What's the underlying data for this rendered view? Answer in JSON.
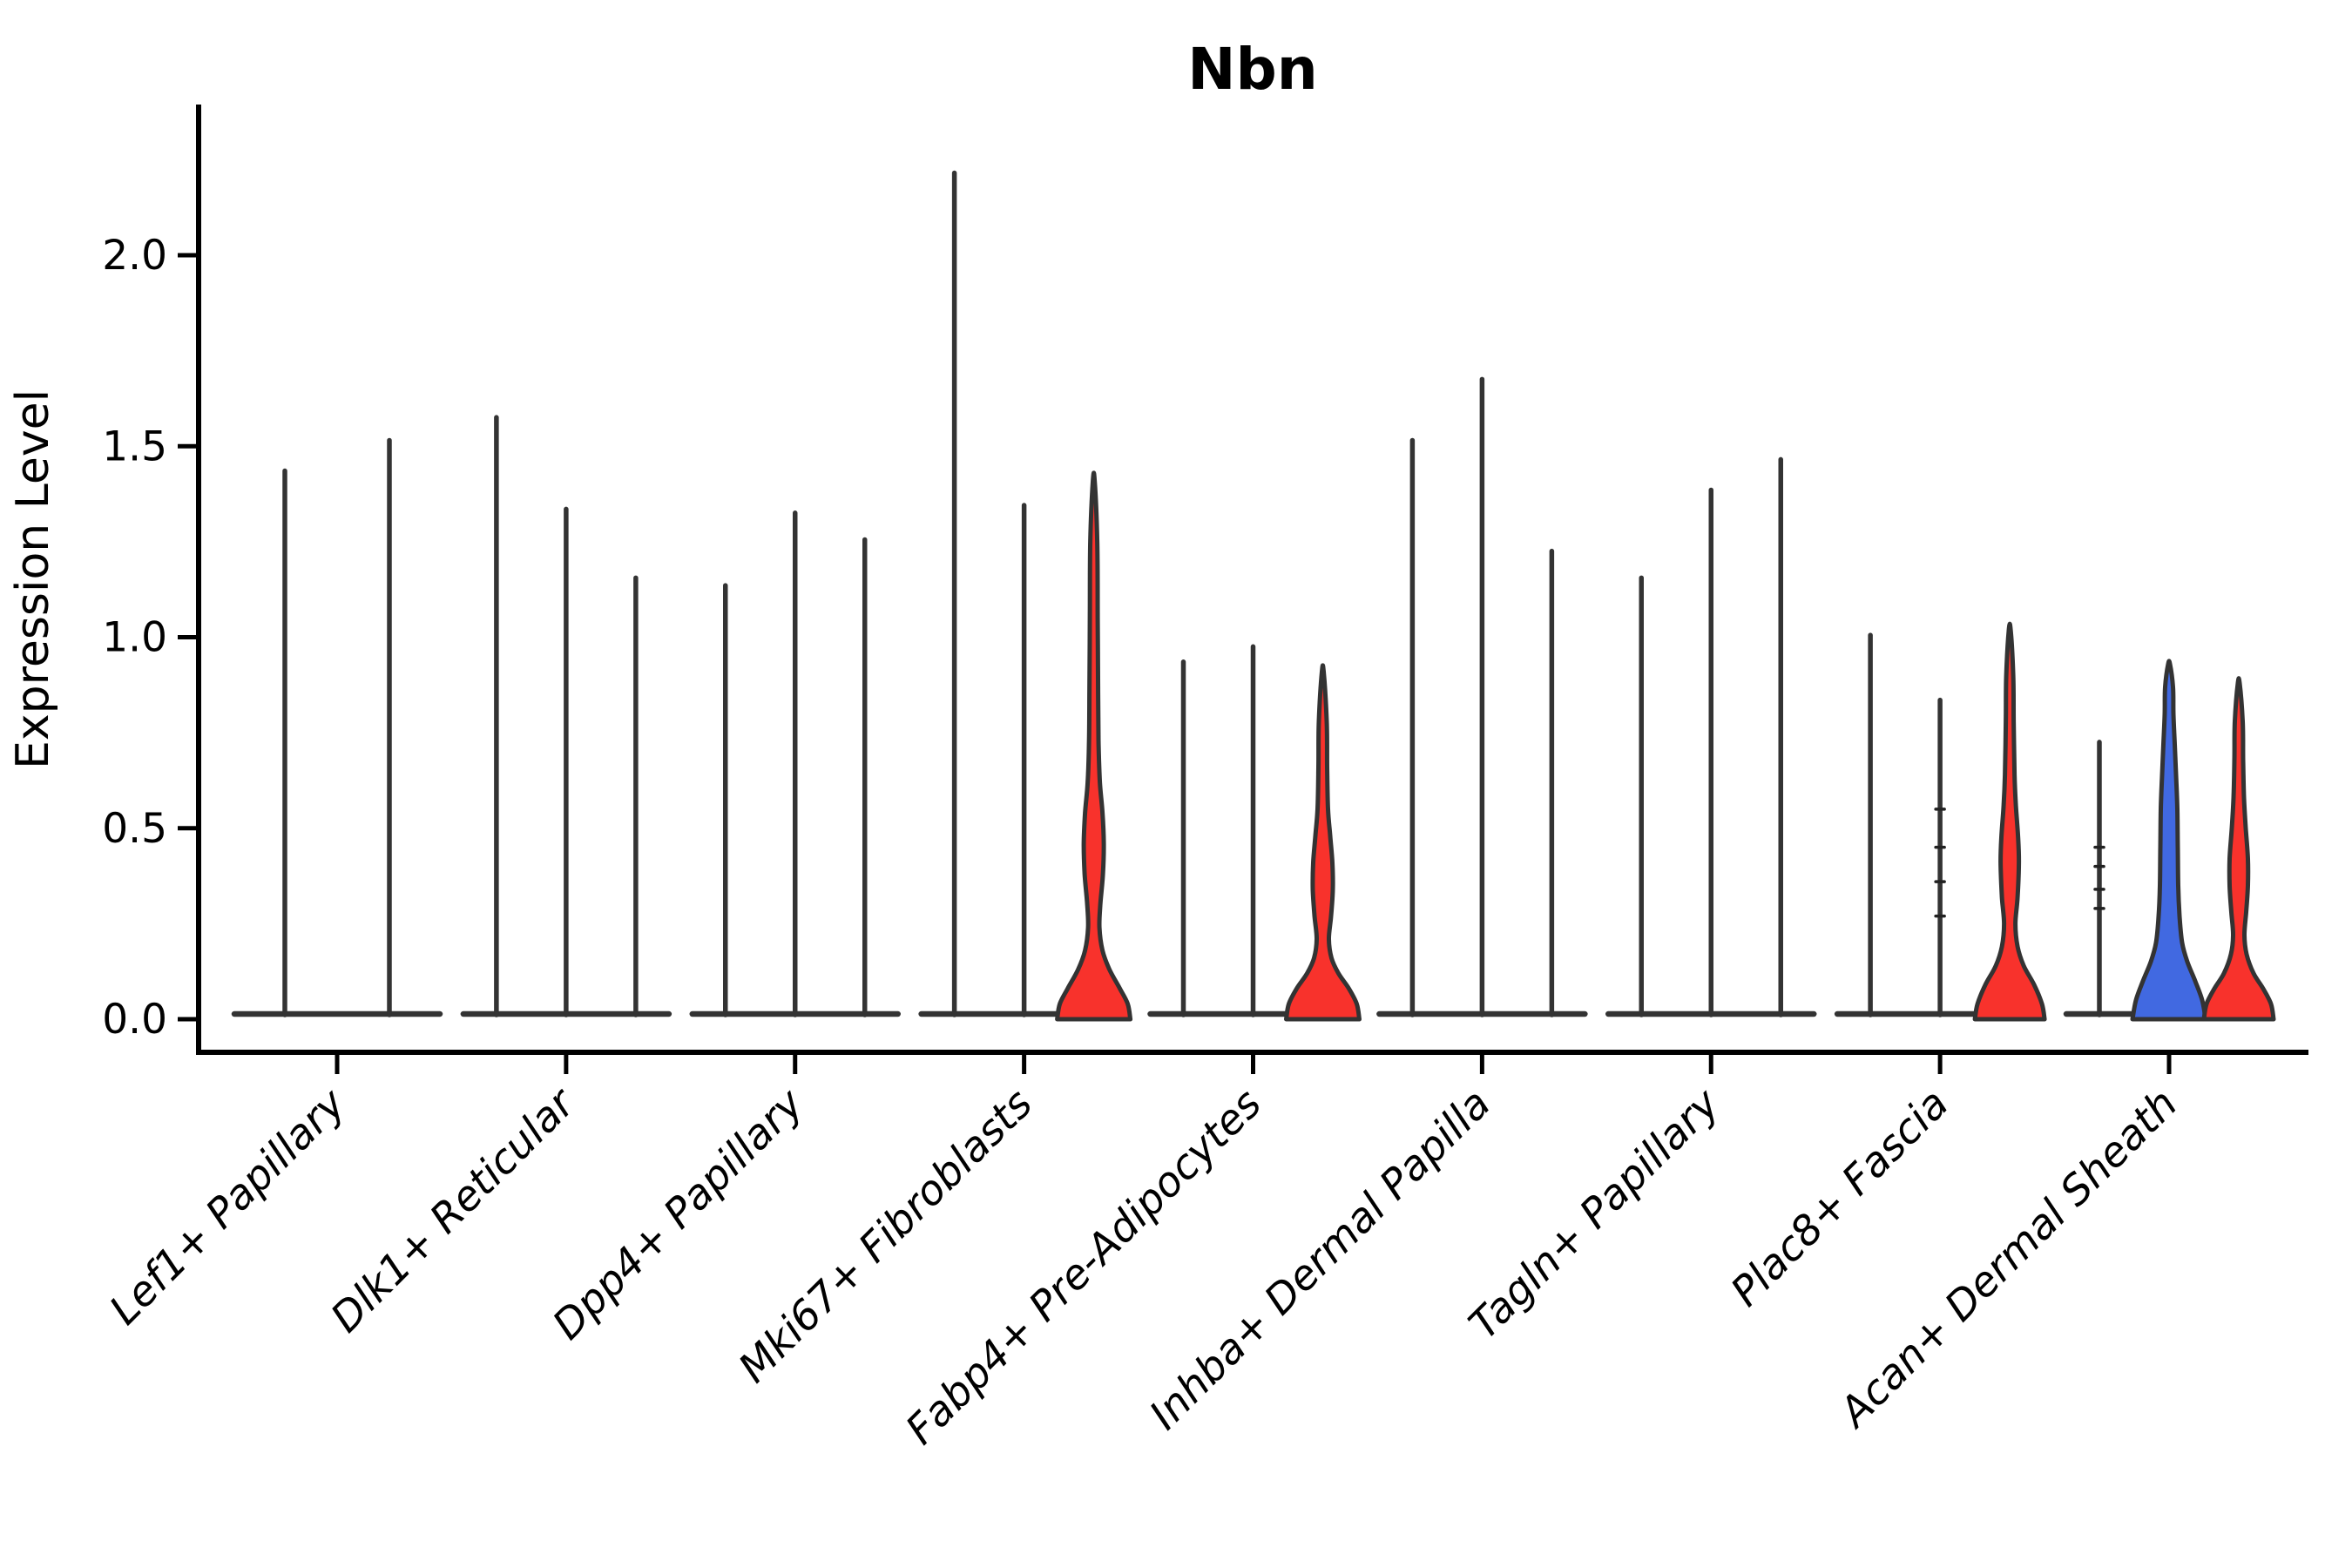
{
  "title": "Nbn",
  "axes": {
    "ylabel": "Expression Level",
    "ytick_labels": [
      "0.0",
      "0.5",
      "1.0",
      "1.5",
      "2.0"
    ],
    "ytick_values": [
      0.0,
      0.5,
      1.0,
      1.5,
      2.0
    ]
  },
  "colors": {
    "red": "#F8322C",
    "blue": "#4169E1",
    "outline": "#333333",
    "axis": "#000000"
  },
  "chart_data": {
    "type": "violin",
    "title": "Nbn",
    "xlabel": "",
    "ylabel": "Expression Level",
    "ylim": [
      0,
      2.3
    ],
    "yticks": [
      0.0,
      0.5,
      1.0,
      1.5,
      2.0
    ],
    "grid": false,
    "legend": "none",
    "categories": [
      "Lef1+ Papillary",
      "Dlk1+ Reticular",
      "Dpp4+ Papillary",
      "Mki67+ Fibroblasts",
      "Fabp4+ Pre-Adipocytes",
      "Inhba+ Dermal Papilla",
      "Tagln+ Papillary",
      "Plac8+ Fascia",
      "Acan+ Dermal Sheath"
    ],
    "groups": [
      {
        "category": "Lef1+ Papillary",
        "violins": [
          {
            "max": 1.44,
            "shape": "spike",
            "fill": "none"
          },
          {
            "max": 1.52,
            "shape": "spike",
            "fill": "none"
          }
        ]
      },
      {
        "category": "Dlk1+ Reticular",
        "violins": [
          {
            "max": 1.58,
            "shape": "spike",
            "fill": "none"
          },
          {
            "max": 1.34,
            "shape": "spike",
            "fill": "none"
          },
          {
            "max": 1.16,
            "shape": "spike",
            "fill": "none"
          }
        ]
      },
      {
        "category": "Dpp4+ Papillary",
        "violins": [
          {
            "max": 1.14,
            "shape": "spike",
            "fill": "none"
          },
          {
            "max": 1.33,
            "shape": "spike",
            "fill": "none"
          },
          {
            "max": 1.26,
            "shape": "spike",
            "fill": "none"
          }
        ]
      },
      {
        "category": "Mki67+ Fibroblasts",
        "violins": [
          {
            "max": 2.22,
            "shape": "spike",
            "fill": "none"
          },
          {
            "max": 1.35,
            "shape": "spike",
            "fill": "none"
          },
          {
            "max": 1.41,
            "shape": "violin",
            "fill": "red",
            "profile": [
              [
                0,
                42
              ],
              [
                0.04,
                39
              ],
              [
                0.08,
                30
              ],
              [
                0.13,
                18
              ],
              [
                0.18,
                10
              ],
              [
                0.24,
                6.5
              ],
              [
                0.3,
                7.5
              ],
              [
                0.38,
                10.5
              ],
              [
                0.46,
                11.5
              ],
              [
                0.54,
                10
              ],
              [
                0.62,
                7
              ],
              [
                0.72,
                5.5
              ],
              [
                0.85,
                5
              ],
              [
                1.05,
                4.5
              ],
              [
                1.25,
                4
              ],
              [
                1.41,
                1
              ]
            ]
          }
        ]
      },
      {
        "category": "Fabp4+ Pre-Adipocytes",
        "violins": [
          {
            "max": 0.94,
            "shape": "spike",
            "fill": "none"
          },
          {
            "max": 0.98,
            "shape": "spike",
            "fill": "none"
          },
          {
            "max": 0.91,
            "shape": "violin",
            "fill": "red",
            "profile": [
              [
                0,
                42
              ],
              [
                0.04,
                39
              ],
              [
                0.08,
                30
              ],
              [
                0.12,
                18
              ],
              [
                0.16,
                10
              ],
              [
                0.21,
                7
              ],
              [
                0.27,
                9.5
              ],
              [
                0.34,
                11.5
              ],
              [
                0.41,
                11
              ],
              [
                0.48,
                8.5
              ],
              [
                0.55,
                6
              ],
              [
                0.66,
                5
              ],
              [
                0.78,
                4.5
              ],
              [
                0.91,
                1
              ]
            ]
          }
        ]
      },
      {
        "category": "Inhba+ Dermal Papilla",
        "violins": [
          {
            "max": 1.52,
            "shape": "spike",
            "fill": "none"
          },
          {
            "max": 1.68,
            "shape": "spike",
            "fill": "none"
          },
          {
            "max": 1.23,
            "shape": "spike",
            "fill": "none"
          }
        ]
      },
      {
        "category": "Tagln+ Papillary",
        "violins": [
          {
            "max": 1.16,
            "shape": "spike",
            "fill": "none"
          },
          {
            "max": 1.39,
            "shape": "spike",
            "fill": "none"
          },
          {
            "max": 1.47,
            "shape": "spike",
            "fill": "none"
          }
        ]
      },
      {
        "category": "Plac8+ Fascia",
        "violins": [
          {
            "max": 1.01,
            "shape": "spike",
            "fill": "none"
          },
          {
            "max": 0.84,
            "shape": "spike",
            "fill": "none",
            "points": [
              0.27,
              0.36,
              0.45,
              0.55
            ]
          },
          {
            "max": 1.02,
            "shape": "violin",
            "fill": "red",
            "profile": [
              [
                0,
                40
              ],
              [
                0.04,
                37
              ],
              [
                0.09,
                28
              ],
              [
                0.14,
                16
              ],
              [
                0.19,
                9
              ],
              [
                0.25,
                6.5
              ],
              [
                0.32,
                9
              ],
              [
                0.41,
                10.5
              ],
              [
                0.48,
                9.5
              ],
              [
                0.56,
                7
              ],
              [
                0.64,
                5.5
              ],
              [
                0.78,
                4.5
              ],
              [
                0.9,
                4
              ],
              [
                1.02,
                1
              ]
            ]
          }
        ]
      },
      {
        "category": "Acan+ Dermal Sheath",
        "violins": [
          {
            "max": 0.73,
            "shape": "spike",
            "fill": "none",
            "points": [
              0.29,
              0.34,
              0.4,
              0.45
            ]
          },
          {
            "max": 0.93,
            "shape": "violin",
            "fill": "blue",
            "profile": [
              [
                0,
                42
              ],
              [
                0.05,
                38
              ],
              [
                0.1,
                30
              ],
              [
                0.15,
                21
              ],
              [
                0.2,
                15
              ],
              [
                0.27,
                12
              ],
              [
                0.35,
                10.5
              ],
              [
                0.45,
                10
              ],
              [
                0.55,
                9.5
              ],
              [
                0.64,
                8
              ],
              [
                0.72,
                6.5
              ],
              [
                0.8,
                5
              ],
              [
                0.87,
                4.5
              ],
              [
                0.93,
                1
              ]
            ]
          },
          {
            "max": 0.88,
            "shape": "violin",
            "fill": "red",
            "profile": [
              [
                0,
                40
              ],
              [
                0.04,
                37
              ],
              [
                0.08,
                28
              ],
              [
                0.12,
                17
              ],
              [
                0.17,
                9
              ],
              [
                0.22,
                6.5
              ],
              [
                0.28,
                8.5
              ],
              [
                0.35,
                10.5
              ],
              [
                0.42,
                10.5
              ],
              [
                0.5,
                8
              ],
              [
                0.58,
                6
              ],
              [
                0.68,
                5
              ],
              [
                0.78,
                4.5
              ],
              [
                0.88,
                1
              ]
            ]
          }
        ]
      }
    ]
  }
}
